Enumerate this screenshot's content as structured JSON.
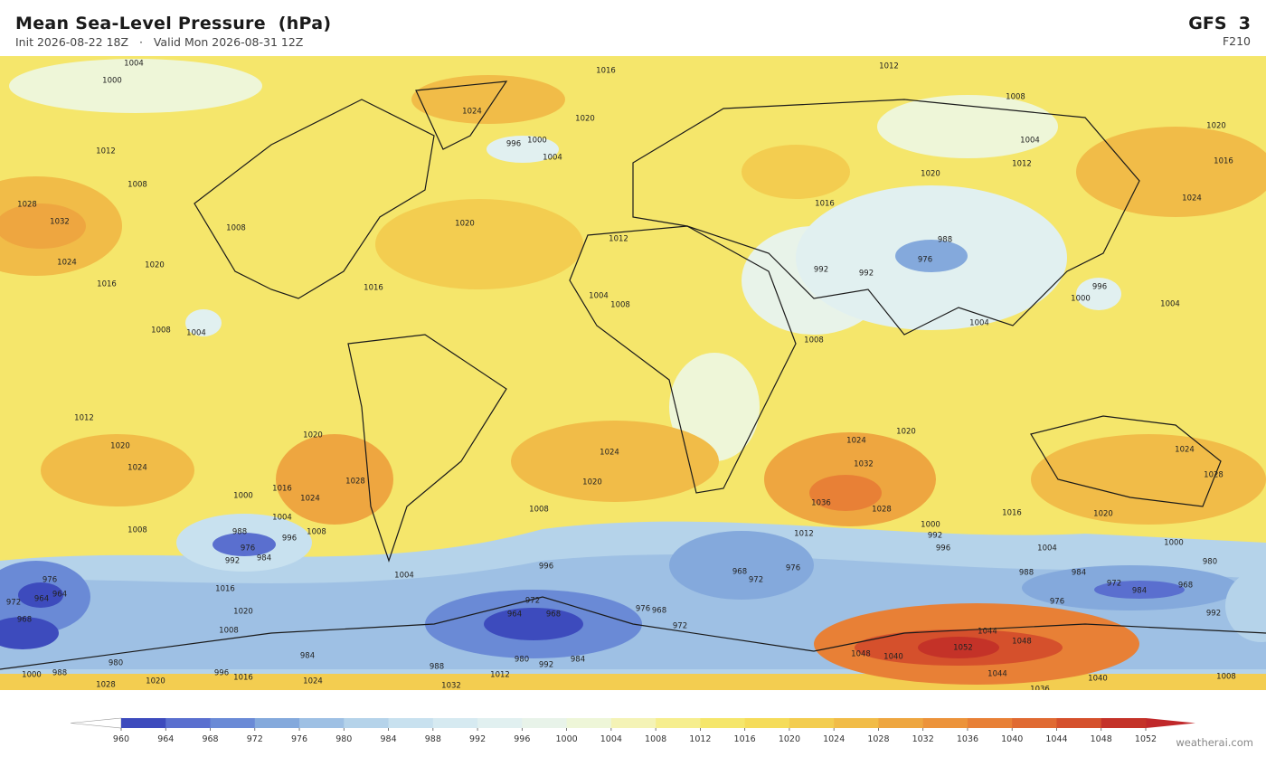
{
  "header": {
    "title": "Mean Sea-Level Pressure  (hPa)",
    "subtitle": "Init 2026-08-22 18Z   ·   Valid Mon 2026-08-31 12Z",
    "model": "GFS  3",
    "forecast_hour": "F210"
  },
  "contour_labels": [
    1004,
    1000,
    1016,
    1012,
    1024,
    1020,
    996,
    1000,
    1004,
    1008,
    1004,
    1012,
    1020,
    1016,
    1024,
    1012,
    1008,
    1028,
    1032,
    1024,
    1020,
    1016,
    1008,
    1020,
    1016,
    1004,
    1008,
    1020,
    1016,
    1012,
    1004,
    1008,
    992,
    992,
    976,
    988,
    996,
    1000,
    1004,
    1004,
    1008,
    1012,
    1020,
    1024,
    1020,
    1028,
    1024,
    1016,
    1000,
    1004,
    996,
    1008,
    988,
    976,
    984,
    992,
    1024,
    1020,
    1008,
    1024,
    1020,
    1032,
    1036,
    1028,
    1024,
    1028,
    1020,
    1016,
    1012,
    1000,
    992,
    996,
    1004,
    1000,
    980,
    988,
    984,
    972,
    984,
    968,
    976,
    996,
    968,
    972,
    976,
    1004,
    1008,
    1016,
    1020,
    976,
    964,
    972,
    968,
    964,
    972,
    968,
    964,
    976,
    968,
    972,
    1044,
    1048,
    1052,
    1048,
    1040,
    1044,
    1040,
    1036,
    1008,
    984,
    980,
    980,
    992,
    984,
    988,
    1012,
    1032,
    1028,
    1020,
    1016,
    1024,
    996,
    1000,
    988,
    1008,
    992
  ],
  "colorbar": {
    "lim": [
      960,
      1052
    ],
    "ticks": [
      960,
      964,
      968,
      972,
      976,
      980,
      984,
      988,
      992,
      996,
      1000,
      1004,
      1008,
      1012,
      1016,
      1020,
      1024,
      1028,
      1032,
      1036,
      1040,
      1044,
      1048,
      1052
    ],
    "colors": [
      "#3d4bbd",
      "#5a6fcf",
      "#6a8ad6",
      "#84a9dc",
      "#9ec0e4",
      "#b5d3ea",
      "#c8e1ef",
      "#d6eaf1",
      "#e1f0f0",
      "#e8f3e9",
      "#eef6d8",
      "#f4f3b6",
      "#f6ee8e",
      "#f5e66b",
      "#f5dc5a",
      "#f3cd50",
      "#f1bc48",
      "#eea640",
      "#ec933a",
      "#e88036",
      "#e06a32",
      "#d5502c",
      "#c43228"
    ],
    "under_color": "#ffffff",
    "over_color": "#c0282a"
  },
  "footer": "weatherai.com"
}
